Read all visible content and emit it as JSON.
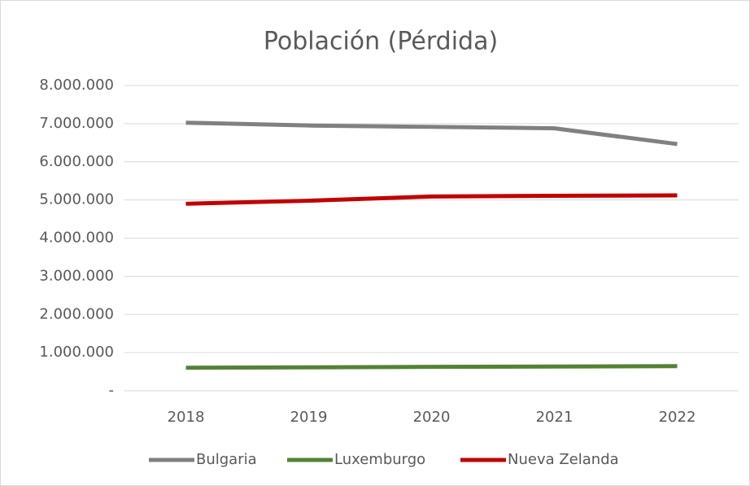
{
  "chart_data": {
    "type": "line",
    "title": "Población (Pérdida)",
    "categories": [
      "2018",
      "2019",
      "2020",
      "2021",
      "2022"
    ],
    "series": [
      {
        "name": "Bulgaria",
        "color": "#808080",
        "values": [
          7025000,
          6951000,
          6916000,
          6878000,
          6465000
        ]
      },
      {
        "name": "Luxemburgo",
        "color": "#548235",
        "values": [
          602000,
          614000,
          626000,
          635000,
          645000
        ]
      },
      {
        "name": "Nueva Zelanda",
        "color": "#c00000",
        "values": [
          4900000,
          4980000,
          5090000,
          5110000,
          5120000
        ]
      }
    ],
    "ylim": [
      0,
      8000000
    ],
    "yticks": [
      {
        "value": 0,
        "label": "-"
      },
      {
        "value": 1000000,
        "label": "1.000.000"
      },
      {
        "value": 2000000,
        "label": "2.000.000"
      },
      {
        "value": 3000000,
        "label": "3.000.000"
      },
      {
        "value": 4000000,
        "label": "4.000.000"
      },
      {
        "value": 5000000,
        "label": "5.000.000"
      },
      {
        "value": 6000000,
        "label": "6.000.000"
      },
      {
        "value": 7000000,
        "label": "7.000.000"
      },
      {
        "value": 8000000,
        "label": "8.000.000"
      }
    ],
    "grid": true,
    "legend": "bottom"
  }
}
